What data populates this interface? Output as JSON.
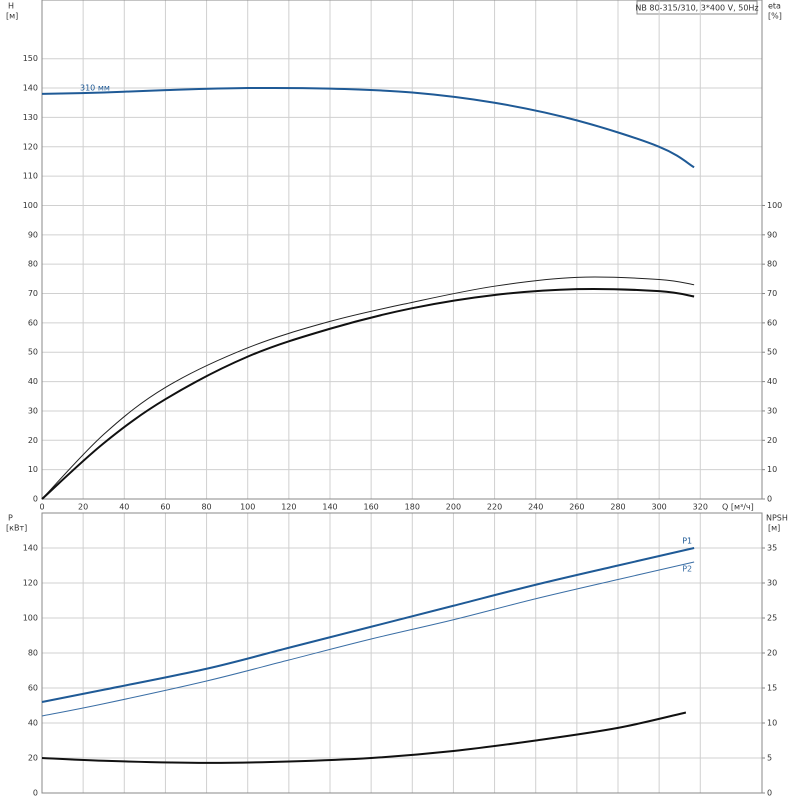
{
  "chart_data": [
    {
      "type": "line",
      "title": "NB 80-315/310, 3*400 V, 50Hz",
      "y_label": "H",
      "y_unit": "[м]",
      "y2_label": "eta",
      "y2_unit": "[%]",
      "x_label": "Q [м³/ч]",
      "xlim": [
        0,
        350
      ],
      "xticks": [
        0,
        20,
        40,
        60,
        80,
        100,
        120,
        140,
        160,
        180,
        200,
        220,
        240,
        260,
        280,
        300,
        320
      ],
      "ylim": [
        0,
        170
      ],
      "yticks": [
        0,
        10,
        20,
        30,
        40,
        50,
        60,
        70,
        80,
        90,
        100,
        110,
        120,
        130,
        140,
        150
      ],
      "y2lim": [
        0,
        170
      ],
      "y2ticks": [
        0,
        10,
        20,
        30,
        40,
        50,
        60,
        70,
        80,
        90,
        100
      ],
      "grid": true,
      "series": [
        {
          "name": "310 мм",
          "color": "#1f5a96",
          "line_width": 2,
          "x": [
            0,
            30,
            60,
            100,
            140,
            180,
            220,
            260,
            300,
            317
          ],
          "values": [
            138,
            138.5,
            139.3,
            140,
            139.8,
            138.5,
            135,
            129,
            120,
            113
          ]
        },
        {
          "color": "#222222",
          "line_width": 1,
          "axis": "y2",
          "x": [
            0,
            30,
            60,
            100,
            140,
            180,
            220,
            260,
            300,
            317
          ],
          "values": [
            0,
            22,
            38,
            51.5,
            60.5,
            67,
            72.5,
            75.5,
            74.8,
            73
          ]
        },
        {
          "color": "#111111",
          "line_width": 2,
          "axis": "y2",
          "x": [
            0,
            30,
            60,
            100,
            140,
            180,
            220,
            260,
            300,
            317
          ],
          "values": [
            0,
            19,
            34,
            48.5,
            58,
            65,
            69.5,
            71.5,
            70.8,
            69
          ]
        }
      ]
    },
    {
      "type": "line",
      "y_label": "P",
      "y_unit": "[кВт]",
      "y2_label": "NPSH",
      "y2_unit": "[м]",
      "ylim": [
        0,
        160
      ],
      "yticks": [
        0,
        20,
        40,
        60,
        80,
        100,
        120,
        140
      ],
      "y2lim": [
        0,
        40
      ],
      "y2ticks": [
        0,
        5,
        10,
        15,
        20,
        25,
        30,
        35
      ],
      "grid": true,
      "series": [
        {
          "name": "P1",
          "color": "#1f5a96",
          "line_width": 2,
          "x": [
            0,
            30,
            80,
            120,
            160,
            200,
            240,
            280,
            317
          ],
          "values": [
            52,
            59,
            71,
            83,
            95,
            107,
            119,
            130,
            140
          ]
        },
        {
          "name": "P2",
          "color": "#3a6ea5",
          "line_width": 1,
          "x": [
            0,
            30,
            80,
            120,
            160,
            200,
            240,
            280,
            317
          ],
          "values": [
            44,
            51,
            64,
            76,
            88,
            99,
            111,
            122,
            132
          ]
        },
        {
          "color": "#111111",
          "line_width": 2,
          "axis": "y2",
          "x": [
            0,
            30,
            80,
            120,
            160,
            200,
            240,
            280,
            313
          ],
          "values": [
            5,
            4.6,
            4.3,
            4.5,
            5,
            6,
            7.5,
            9.3,
            11.5
          ]
        }
      ]
    }
  ]
}
